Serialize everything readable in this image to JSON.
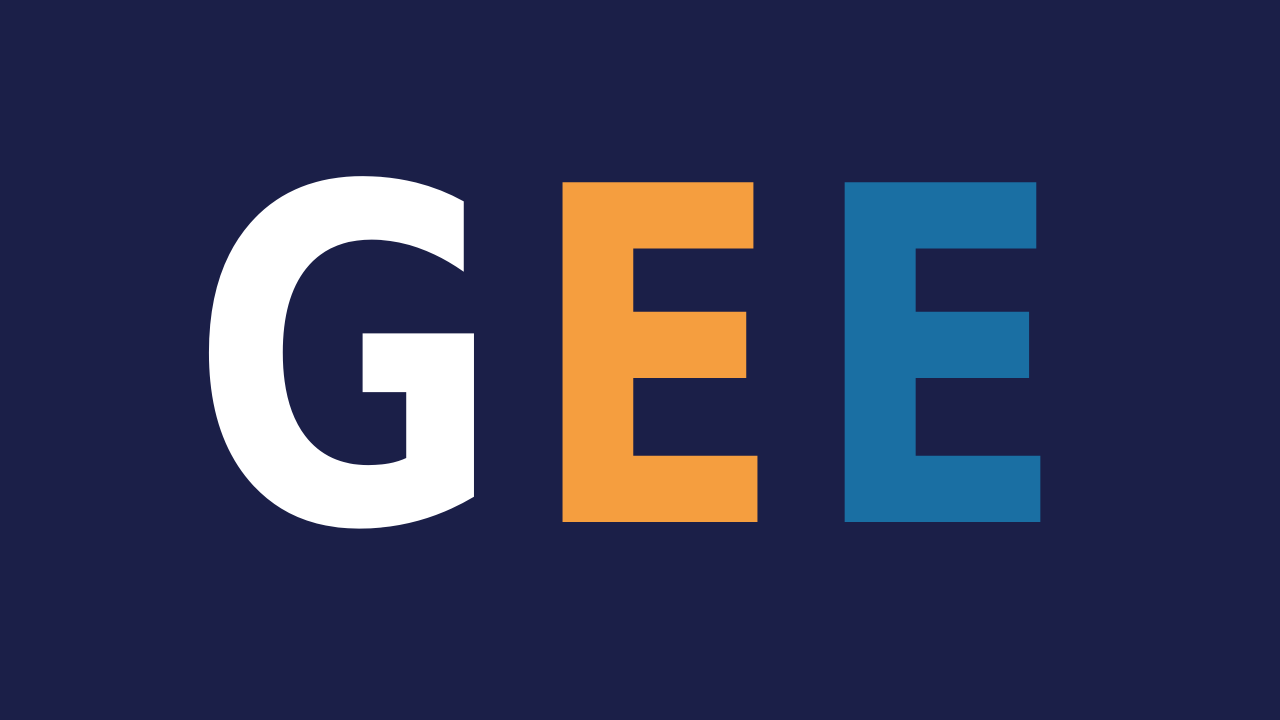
{
  "logo": {
    "letters": [
      "G",
      "E",
      "E"
    ]
  }
}
